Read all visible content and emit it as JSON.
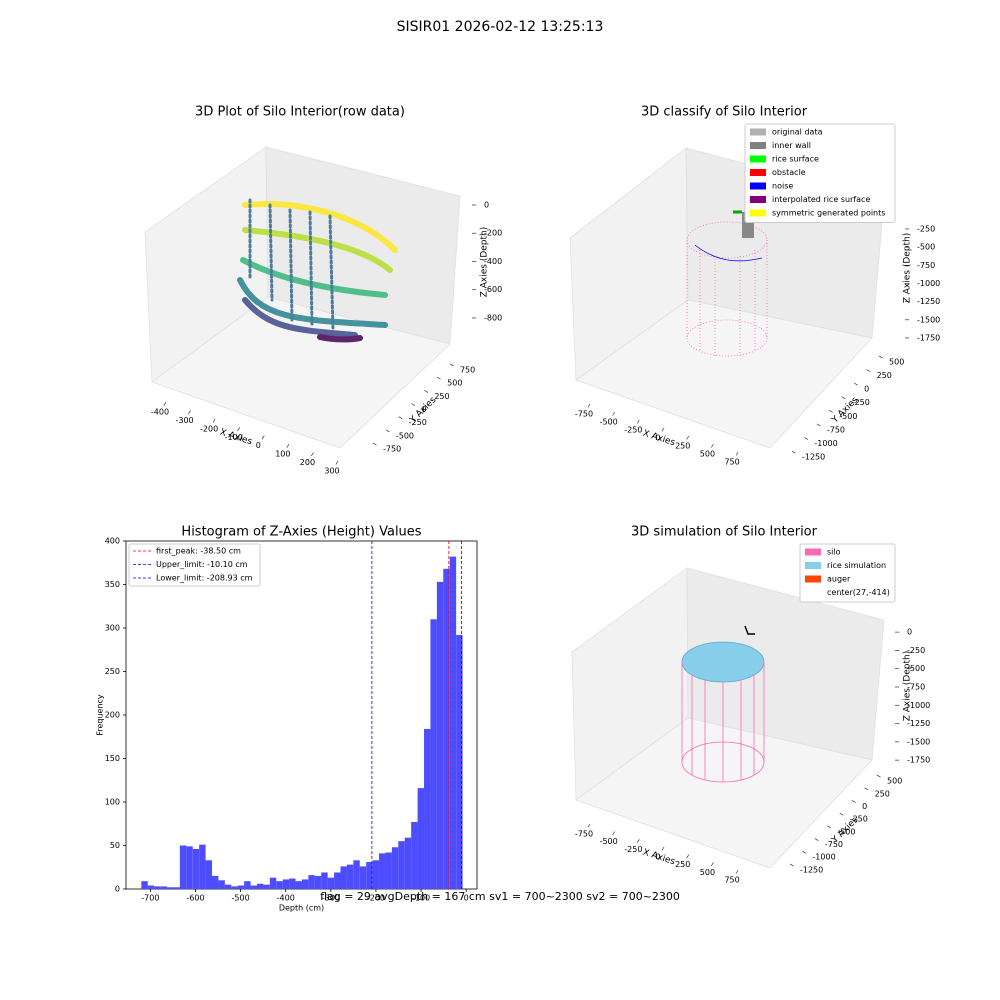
{
  "title": "SISIR01 2026-02-12 13:25:13",
  "footer": "flag = 29  avgDepth = 167 cm  sv1 = 700~2300  sv2 = 700~2300",
  "chart_data": [
    {
      "type": "scatter3d",
      "title": "3D Plot of Silo Interior(row data)",
      "xlabel": "X Axies",
      "ylabel": "Y Axies",
      "zlabel": "Z Axies (Depth)",
      "xlim": [
        -450,
        350
      ],
      "ylim": [
        -850,
        850
      ],
      "zlim": [
        -900,
        50
      ],
      "xticks": [
        -400,
        -300,
        -200,
        -100,
        0,
        100,
        200,
        300
      ],
      "yticks": [
        -750,
        -500,
        -250,
        0,
        250,
        500,
        750
      ],
      "zticks": [
        0,
        -200,
        -400,
        -600,
        -800
      ]
    },
    {
      "type": "scatter3d",
      "title": "3D classify of Silo Interior",
      "xlabel": "X Axies",
      "ylabel": "Y Axies",
      "zlabel": "Z Axies (Depth)",
      "xlim": [
        -850,
        850
      ],
      "ylim": [
        -1350,
        600
      ],
      "zlim": [
        -1800,
        0
      ],
      "xticks": [
        -750,
        -500,
        -250,
        0,
        250,
        500,
        750
      ],
      "yticks": [
        -1250,
        -1000,
        -750,
        -500,
        -250,
        0,
        250,
        500
      ],
      "zticks": [
        -250,
        -500,
        -750,
        -1000,
        -1250,
        -1500,
        -1750
      ],
      "legend": [
        {
          "name": "original data",
          "color": "#b0b0b0"
        },
        {
          "name": "inner wall",
          "color": "#808080"
        },
        {
          "name": "rice surface",
          "color": "#00ff00"
        },
        {
          "name": "obstacle",
          "color": "#ff0000"
        },
        {
          "name": "noise",
          "color": "#0000ff"
        },
        {
          "name": "interpolated rice surface",
          "color": "#800080"
        },
        {
          "name": "symmetric generated points",
          "color": "#ffff00"
        }
      ]
    },
    {
      "type": "histogram",
      "title": "Histogram of Z-Axies (Height) Values",
      "xlabel": "Depth (cm)",
      "ylabel": "Frequency",
      "color": "#4d4dff",
      "bins": [
        -720,
        -705.76,
        -691.52,
        -677.28,
        -663.04,
        -648.8,
        -634.56,
        -620.32,
        -606.08,
        -591.84,
        -577.6,
        -563.36,
        -549.12,
        -534.88,
        -520.64,
        -506.4,
        -492.16,
        -477.92,
        -463.68,
        -449.44,
        -435.2,
        -420.96,
        -406.72,
        -392.48,
        -378.24,
        -364,
        -349.76,
        -335.52,
        -321.28,
        -307.04,
        -292.8,
        -278.56,
        -264.32,
        -250.08,
        -235.84,
        -221.6,
        -207.36,
        -193.12,
        -178.88,
        -164.64,
        -150.4,
        -136.16,
        -121.92,
        -107.68,
        -93.44,
        -79.2,
        -64.96,
        -50.72,
        -36.48,
        -22.24,
        -8
      ],
      "values": [
        9,
        4,
        3,
        3,
        2,
        2,
        50,
        49,
        46,
        51,
        33,
        15,
        10,
        5,
        3,
        4,
        9,
        4,
        6,
        5,
        13,
        9,
        11,
        12,
        9,
        11,
        16,
        15,
        19,
        13,
        19,
        26,
        28,
        33,
        26,
        31,
        33,
        41,
        42,
        48,
        55,
        59,
        77,
        116,
        184,
        310,
        353,
        368,
        382,
        292
      ],
      "xlim": [
        -754,
        24
      ],
      "ylim": [
        0,
        400
      ],
      "xticks": [
        -700,
        -600,
        -500,
        -400,
        -300,
        -200,
        -100,
        0
      ],
      "yticks": [
        0,
        50,
        100,
        150,
        200,
        250,
        300,
        350,
        400
      ],
      "lines": [
        {
          "name": "first_peak: -38.50 cm",
          "value": -38.5,
          "color": "#ff0000"
        },
        {
          "name": "Upper_limit: -10.10 cm",
          "value": -10.1,
          "color": "#0000ff"
        },
        {
          "name": "Lower_limit: -208.93 cm",
          "value": -208.93,
          "color": "#0000ff"
        }
      ]
    },
    {
      "type": "scatter3d",
      "title": "3D simulation of Silo Interior",
      "xlabel": "X Axies",
      "ylabel": "Y Axies",
      "zlabel": "Z Axies (Depth)",
      "xlim": [
        -850,
        850
      ],
      "ylim": [
        -1350,
        600
      ],
      "zlim": [
        -1800,
        100
      ],
      "xticks": [
        -750,
        -500,
        -250,
        0,
        250,
        500,
        750
      ],
      "yticks": [
        -1250,
        -1000,
        -750,
        -500,
        -250,
        0,
        250,
        500
      ],
      "zticks": [
        0,
        -250,
        -500,
        -750,
        -1000,
        -1250,
        -1500,
        -1750
      ],
      "legend": [
        {
          "name": "silo",
          "color": "#ff69b4"
        },
        {
          "name": "rice simulation",
          "color": "#87ceeb"
        },
        {
          "name": "auger",
          "color": "#ff4500"
        },
        {
          "name": "center(27,-414)"
        }
      ]
    }
  ]
}
